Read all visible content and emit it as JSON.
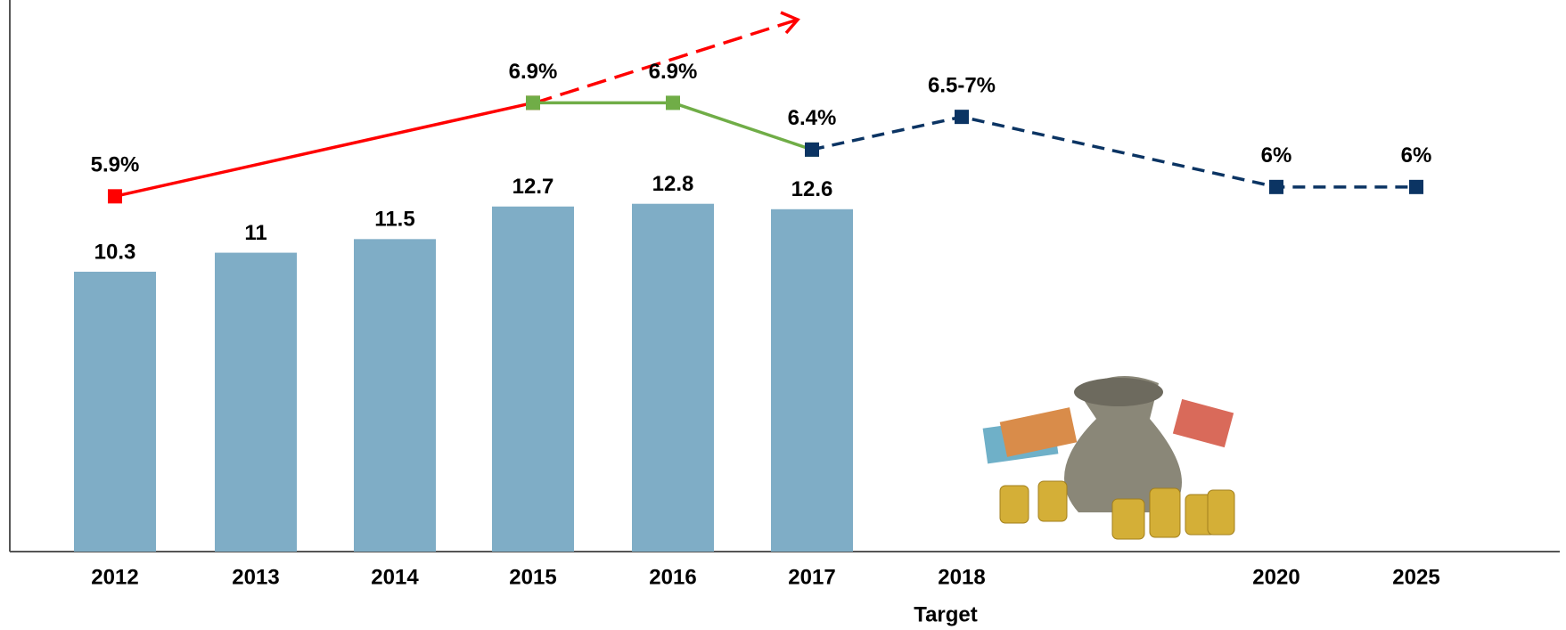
{
  "chart_data": {
    "type": "bar",
    "categories": [
      "2012",
      "2013",
      "2014",
      "2015",
      "2016",
      "2017",
      "2018",
      "2020",
      "2025"
    ],
    "annotation": "Target",
    "values": [
      10.3,
      11,
      11.5,
      12.7,
      12.8,
      12.6,
      null,
      null,
      null
    ],
    "color": "#7fadc6",
    "ylim": [
      0,
      20.3
    ],
    "y2lim": [
      2.1,
      8.0
    ],
    "lines": [
      {
        "color": "#ff0000",
        "dashed": false,
        "axis": "y2",
        "x": [
          "2012",
          "2015"
        ],
        "values": [
          5.9,
          6.9
        ],
        "value_labels": [
          "5.9%",
          null
        ]
      },
      {
        "color": "#70ad47",
        "dashed": false,
        "axis": "y2",
        "x": [
          "2015",
          "2016",
          "2017"
        ],
        "values": [
          6.9,
          6.9,
          6.4
        ],
        "value_labels": [
          "6.9%",
          "6.9%",
          "6.4%"
        ]
      },
      {
        "color": "#0b3463",
        "dashed": true,
        "axis": "y2",
        "x": [
          "2017",
          "2018",
          "2020",
          "2025"
        ],
        "values": [
          6.4,
          6.75,
          6,
          6
        ],
        "value_labels": [
          null,
          "6.5-7%",
          "6%",
          "6%"
        ]
      }
    ]
  }
}
